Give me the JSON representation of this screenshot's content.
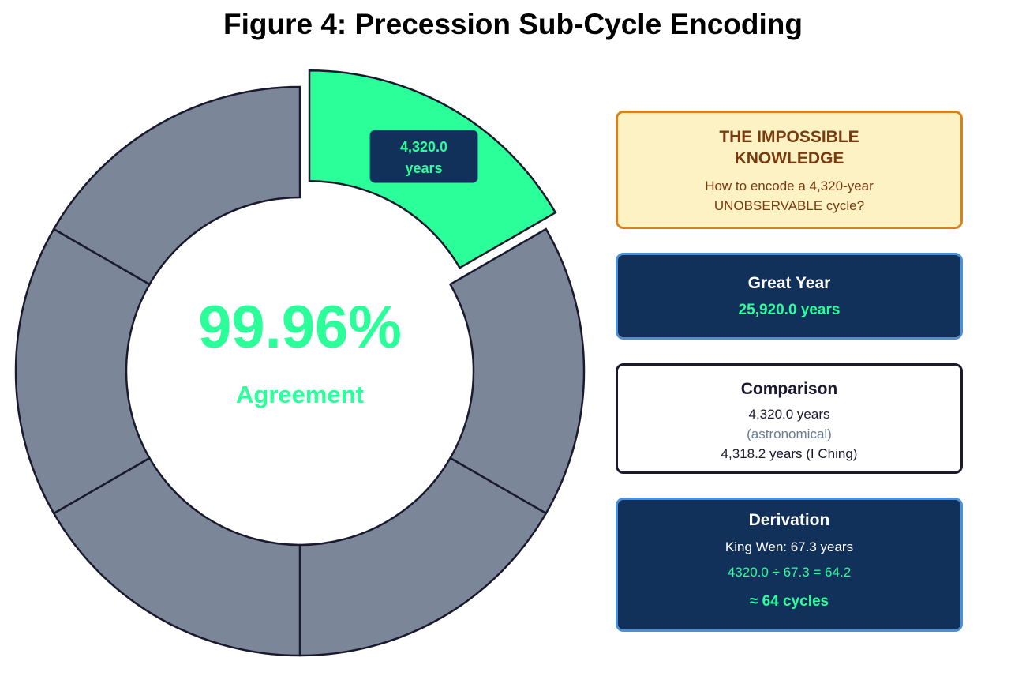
{
  "title": "Figure 4: Precession Sub-Cycle Encoding",
  "chart_data": {
    "type": "pie",
    "variant": "donut",
    "segments": [
      {
        "value": 1,
        "color": "#2aff9a",
        "highlighted": true,
        "label": "4,320.0",
        "label_line2": "years"
      },
      {
        "value": 1,
        "color": "#7b8799"
      },
      {
        "value": 1,
        "color": "#7b8799"
      },
      {
        "value": 1,
        "color": "#7b8799"
      },
      {
        "value": 1,
        "color": "#7b8799"
      },
      {
        "value": 1,
        "color": "#7b8799"
      }
    ],
    "center_value": "99.96%",
    "center_label": "Agreement",
    "colors": {
      "accent": "#2aff9a",
      "segment": "#7b8799",
      "outline": "#1a1a2e",
      "label_bg": "#12315a"
    }
  },
  "panels": {
    "impossible": {
      "heading": "THE IMPOSSIBLE KNOWLEDGE",
      "text": "How to encode a 4,320-year UNOBSERVABLE cycle?"
    },
    "great_year": {
      "heading": "Great Year",
      "value": "25,920.0 years"
    },
    "comparison": {
      "heading": "Comparison",
      "line1": "4,320.0 years",
      "line2": "(astronomical)",
      "line3": "4,318.2 years (I Ching)"
    },
    "derivation": {
      "heading": "Derivation",
      "line1": "King Wen: 67.3 years",
      "line2": "4320.0 ÷ 67.3 = 64.2",
      "line3": "≈ 64 cycles"
    }
  }
}
